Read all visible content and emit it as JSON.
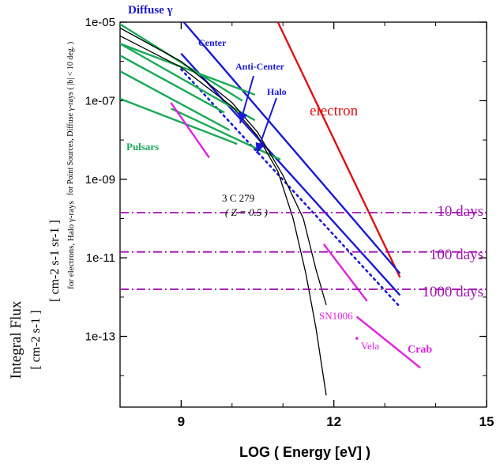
{
  "chart_data": {
    "type": "line",
    "xlabel": "LOG ( Energy [eV] )",
    "ylabel": {
      "main": "Integral Flux",
      "units1": "[ cm-2 s-1 ]",
      "units2": "[ cm-2 s-1 sr-1 ]",
      "note1": "for Point Sources, Diffuse γ-rays ( |b| < 10 deg. )",
      "note2": "for electrons, Halo γ-rays"
    },
    "xlim": [
      7.8,
      15
    ],
    "ylim_log10": [
      -14.8,
      -5
    ],
    "y_scale": "log",
    "x_ticks": [
      "9",
      "12",
      "15"
    ],
    "y_ticks": [
      "1e-05",
      "1e-07",
      "1e-09",
      "1e-11",
      "1e-13"
    ],
    "colors": {
      "green": "#1aaa55",
      "blue": "#1a1ad6",
      "red": "#e01010",
      "magenta": "#e020e0",
      "purple": "#a010b0",
      "black": "#000000"
    },
    "labels": {
      "diffuse": "Diffuse γ",
      "center": "Center",
      "anti_center": "Anti-Center",
      "halo": "Halo",
      "electron": "electron",
      "pulsars": "Pulsars",
      "src_3c279": "3 C 279",
      "z": "( Z = 0.5 )",
      "sn1006": "SN1006",
      "vela": "Vela",
      "crab": "Crab",
      "days10": "10 days",
      "days100": "100 days",
      "days1000": "1000 days"
    },
    "series": [
      {
        "name": "electron",
        "color": "red",
        "points": [
          [
            10.9,
            -5.0
          ],
          [
            13.3,
            -11.5
          ]
        ]
      },
      {
        "name": "Center",
        "color": "blue",
        "points": [
          [
            9.05,
            -5.0
          ],
          [
            13.3,
            -11.4
          ]
        ]
      },
      {
        "name": "Anti-Center",
        "color": "blue",
        "points": [
          [
            9.0,
            -5.8
          ],
          [
            13.3,
            -11.95
          ]
        ]
      },
      {
        "name": "Halo",
        "color": "blue",
        "style": "dotted",
        "points": [
          [
            9.0,
            -6.2
          ],
          [
            13.3,
            -12.25
          ]
        ]
      },
      {
        "name": "Crab",
        "color": "magenta",
        "points": [
          [
            12.45,
            -12.5
          ],
          [
            13.7,
            -13.8
          ]
        ]
      },
      {
        "name": "SN1006",
        "color": "magenta",
        "points": [
          [
            11.8,
            -10.65
          ],
          [
            12.65,
            -12.1
          ]
        ]
      },
      {
        "name": "Pulsars",
        "color": "green",
        "lines": [
          [
            [
              7.8,
              -5.05
            ],
            [
              10.2,
              -7.0
            ]
          ],
          [
            [
              7.8,
              -5.55
            ],
            [
              10.45,
              -6.85
            ]
          ],
          [
            [
              7.8,
              -5.55
            ],
            [
              10.45,
              -7.5
            ]
          ],
          [
            [
              7.8,
              -5.85
            ],
            [
              9.85,
              -7.3
            ]
          ],
          [
            [
              7.8,
              -6.25
            ],
            [
              9.95,
              -7.75
            ]
          ],
          [
            [
              7.8,
              -6.95
            ],
            [
              10.1,
              -8.1
            ]
          ],
          [
            [
              8.8,
              -7.2
            ],
            [
              10.95,
              -8.5
            ]
          ]
        ]
      },
      {
        "name": "Pulsars (magenta)",
        "color": "magenta",
        "points": [
          [
            8.8,
            -7.05
          ],
          [
            9.55,
            -8.45
          ]
        ]
      },
      {
        "name": "3 C 279 (a)",
        "color": "black",
        "points": [
          [
            7.8,
            -5.15
          ],
          [
            9.0,
            -6.0
          ],
          [
            10.0,
            -7.05
          ],
          [
            10.5,
            -7.8
          ],
          [
            11.0,
            -8.9
          ],
          [
            11.4,
            -10.0
          ],
          [
            11.65,
            -11.3
          ],
          [
            11.85,
            -12.2
          ]
        ]
      },
      {
        "name": "3 C 279 (b)",
        "color": "black",
        "points": [
          [
            7.8,
            -5.35
          ],
          [
            9.0,
            -6.15
          ],
          [
            10.0,
            -7.15
          ],
          [
            10.5,
            -7.9
          ],
          [
            10.9,
            -8.8
          ],
          [
            11.2,
            -10.0
          ],
          [
            11.45,
            -11.4
          ],
          [
            11.65,
            -12.8
          ],
          [
            11.85,
            -14.5
          ]
        ]
      }
    ],
    "thresholds": [
      {
        "label": "10 days",
        "value_log10": -9.85
      },
      {
        "label": "100 days",
        "value_log10": -10.85
      },
      {
        "label": "1000 days",
        "value_log10": -11.8
      }
    ],
    "point_markers": [
      {
        "name": "Vela",
        "x": 12.45,
        "y_log10": -13.05
      }
    ]
  }
}
